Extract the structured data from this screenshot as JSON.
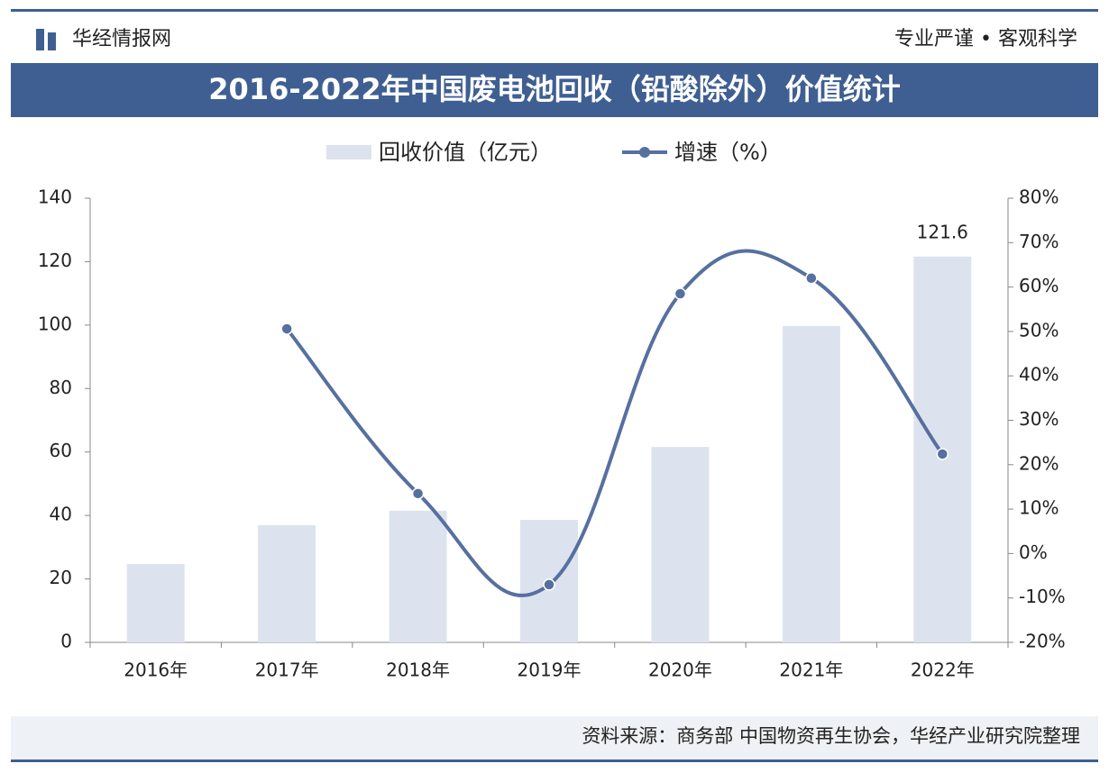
{
  "header": {
    "logo": "华经情报网",
    "slogan": "专业严谨 • 客观科学"
  },
  "source": "资料来源：商务部 中国物资再生协会，华经产业研究院整理",
  "chart_data": {
    "type": "bar-line",
    "title": "2016-2022年中国废电池回收（铅酸除外）价值统计",
    "categories": [
      "2016年",
      "2017年",
      "2018年",
      "2019年",
      "2020年",
      "2021年",
      "2022年"
    ],
    "series": [
      {
        "name": "回收价值（亿元）",
        "type": "bar",
        "color": "#dde3ee",
        "values": [
          24.7,
          36.9,
          41.5,
          38.6,
          61.6,
          99.7,
          121.6
        ],
        "value_labels": [
          null,
          null,
          null,
          null,
          null,
          null,
          "121.6"
        ]
      },
      {
        "name": "增速（%）",
        "type": "line",
        "axis": "y2",
        "color": "#56709f",
        "values": [
          null,
          50.6,
          13.5,
          -7.0,
          58.5,
          62.0,
          22.4
        ]
      }
    ],
    "ylim": [
      0,
      140
    ],
    "yticks": [
      0,
      20,
      40,
      60,
      80,
      100,
      120,
      140
    ],
    "y2lim": [
      -20,
      80
    ],
    "y2ticks": [
      {
        "value": -20,
        "label": "-20%"
      },
      {
        "value": -10,
        "label": "-10%"
      },
      {
        "value": 0,
        "label": "0%"
      },
      {
        "value": 10,
        "label": "10%"
      },
      {
        "value": 20,
        "label": "20%"
      },
      {
        "value": 30,
        "label": "30%"
      },
      {
        "value": 40,
        "label": "40%"
      },
      {
        "value": 50,
        "label": "50%"
      },
      {
        "value": 60,
        "label": "60%"
      },
      {
        "value": 70,
        "label": "70%"
      },
      {
        "value": 80,
        "label": "80%"
      }
    ],
    "grid": false
  }
}
